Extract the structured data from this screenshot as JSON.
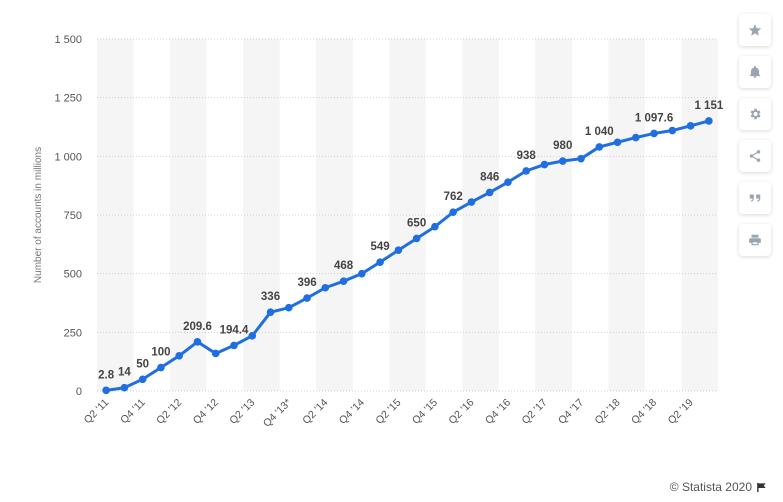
{
  "chart_data": {
    "type": "line",
    "ylabel": "Number of accounts in millions",
    "xlabel": "",
    "ylim": [
      0,
      1500
    ],
    "yticks": [
      0,
      250,
      500,
      750,
      1000,
      1250,
      1500
    ],
    "ytick_labels": [
      "0",
      "250",
      "500",
      "750",
      "1 000",
      "1 250",
      "1 500"
    ],
    "grid": "horizontal dotted, alternating vertical bands",
    "line_color": "#1f6fe0",
    "x": [
      "Q2 '11",
      "Q3 '11",
      "Q4 '11",
      "Q1 '12",
      "Q2 '12",
      "Q3 '12",
      "Q4 '12",
      "Q1 '13",
      "Q2 '13",
      "Q3 '13",
      "Q4 '13*",
      "Q1 '14",
      "Q2 '14",
      "Q3 '14",
      "Q4 '14",
      "Q1 '15",
      "Q2 '15",
      "Q3 '15",
      "Q4 '15",
      "Q1 '16",
      "Q2 '16",
      "Q3 '16",
      "Q4 '16",
      "Q1 '17",
      "Q2 '17",
      "Q3 '17",
      "Q4 '17",
      "Q1 '18",
      "Q2 '18",
      "Q3 '18",
      "Q4 '18",
      "Q1 '19",
      "Q2 '19",
      "Q3 '19"
    ],
    "x_tick_labels": [
      "Q2 '11",
      "",
      "Q4 '11",
      "",
      "Q2 '12",
      "",
      "Q4 '12",
      "",
      "Q2 '13",
      "",
      "Q4 '13*",
      "",
      "Q2 '14",
      "",
      "Q4 '14",
      "",
      "Q2 '15",
      "",
      "Q4 '15",
      "",
      "Q2 '16",
      "",
      "Q4 '16",
      "",
      "Q2 '17",
      "",
      "Q4 '17",
      "",
      "Q2 '18",
      "",
      "Q4 '18",
      "",
      "Q2 '19",
      ""
    ],
    "values": [
      2.8,
      14,
      50,
      100,
      150,
      209.6,
      160,
      194.4,
      235,
      336,
      355,
      396,
      440,
      468,
      500,
      549,
      600,
      650,
      700,
      762,
      805,
      846,
      890,
      938,
      965,
      980,
      990,
      1040,
      1060,
      1080,
      1097.6,
      1110,
      1130,
      1151
    ],
    "data_labels": [
      "2.8",
      "14",
      "50",
      "100",
      "",
      "209.6",
      "",
      "194.4",
      "",
      "336",
      "",
      "396",
      "",
      "468",
      "",
      "549",
      "",
      "650",
      "",
      "762",
      "",
      "846",
      "",
      "938",
      "",
      "980",
      "",
      "1 040",
      "",
      "",
      "1 097.6",
      "",
      "",
      "1 151"
    ]
  },
  "toolbar": [
    {
      "name": "star-icon"
    },
    {
      "name": "bell-icon"
    },
    {
      "name": "gear-icon"
    },
    {
      "name": "share-icon"
    },
    {
      "name": "quote-icon"
    },
    {
      "name": "print-icon"
    }
  ],
  "credit": "© Statista 2020"
}
